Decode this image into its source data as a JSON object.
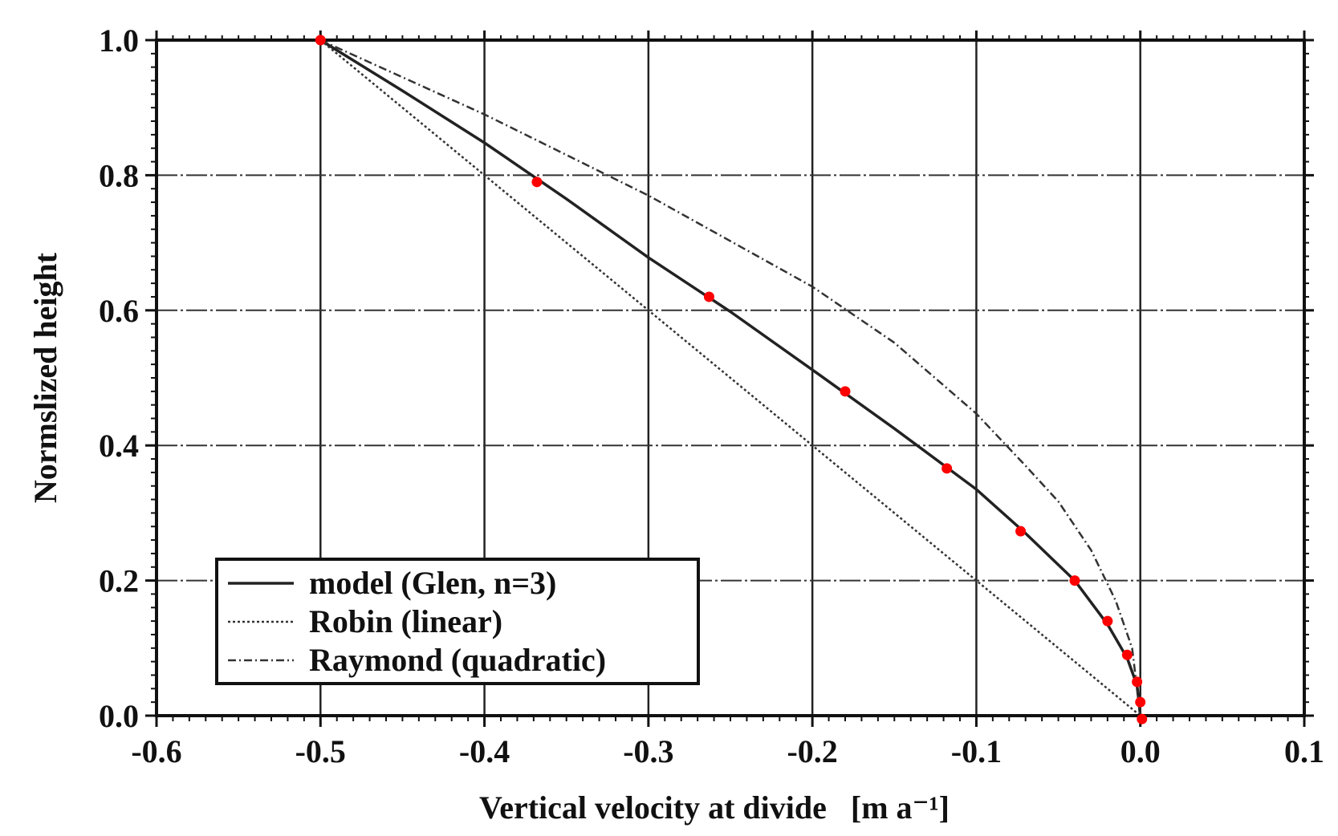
{
  "chart_data": {
    "type": "line",
    "title": "",
    "xlabel": "Vertical velocity at divide",
    "xlabel_unit": "[m a⁻¹]",
    "ylabel": "Normslized height",
    "xlim": [
      -0.6,
      0.1
    ],
    "ylim": [
      0.0,
      1.0
    ],
    "x_ticks": [
      "-0.6",
      "-0.5",
      "-0.4",
      "-0.3",
      "-0.2",
      "-0.1",
      "0.0",
      "0.1"
    ],
    "y_ticks": [
      "0.0",
      "0.2",
      "0.4",
      "0.6",
      "0.8",
      "1.0"
    ],
    "grid": true,
    "legend_position": "bottom-left",
    "series": [
      {
        "name": "model (Glen, n=3)",
        "style": "solid",
        "color": "#222222",
        "x": [
          -0.5,
          -0.45,
          -0.4,
          -0.35,
          -0.3,
          -0.25,
          -0.2,
          -0.15,
          -0.1,
          -0.07,
          -0.04,
          -0.02,
          -0.008,
          -0.002,
          0.0
        ],
        "y": [
          1.0,
          0.925,
          0.848,
          0.765,
          0.678,
          0.598,
          0.512,
          0.425,
          0.335,
          0.27,
          0.2,
          0.135,
          0.085,
          0.045,
          0.0
        ]
      },
      {
        "name": "Robin (linear)",
        "style": "dotted",
        "color": "#333333",
        "x": [
          -0.5,
          -0.4,
          -0.3,
          -0.2,
          -0.1,
          0.0
        ],
        "y": [
          1.0,
          0.8,
          0.6,
          0.4,
          0.2,
          0.0
        ]
      },
      {
        "name": "Raymond (quadratic)",
        "style": "dashdot",
        "color": "#333333",
        "x": [
          -0.5,
          -0.4,
          -0.3,
          -0.2,
          -0.15,
          -0.1,
          -0.07,
          -0.05,
          -0.03,
          -0.015,
          -0.005,
          0.0
        ],
        "y": [
          1.0,
          0.89,
          0.77,
          0.635,
          0.552,
          0.447,
          0.37,
          0.317,
          0.245,
          0.17,
          0.1,
          0.0
        ]
      }
    ],
    "markers": {
      "color": "#ff0000",
      "x": [
        -0.5,
        -0.368,
        -0.263,
        -0.18,
        -0.118,
        -0.073,
        -0.04,
        -0.02,
        -0.008,
        -0.002,
        0.0,
        0.001
      ],
      "y": [
        1.0,
        0.79,
        0.62,
        0.48,
        0.366,
        0.273,
        0.2,
        0.14,
        0.09,
        0.05,
        0.02,
        -0.005
      ]
    }
  }
}
